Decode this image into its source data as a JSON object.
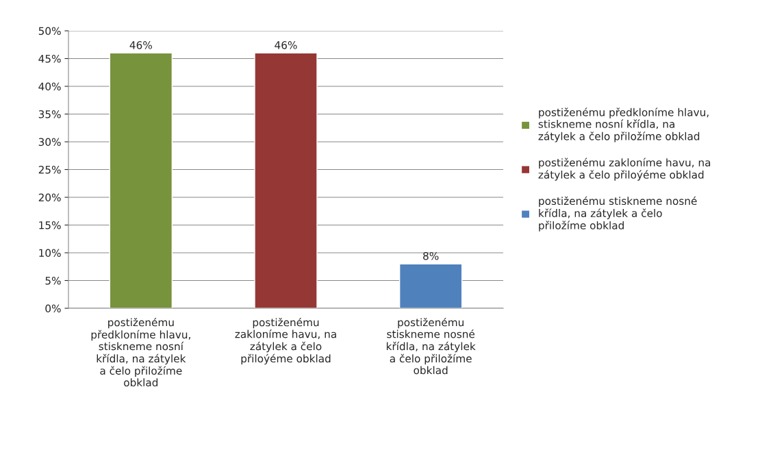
{
  "chart_data": {
    "type": "bar",
    "categories": [
      "postiženému předkloníme hlavu, stiskneme nosní křídla, na zátylek a čelo přiložíme obklad",
      "postiženému zakloníme havu, na zátylek a čelo přiloýéme obklad",
      "postiženému stiskneme nosné křídla, na zátylek a čelo přiložíme obklad"
    ],
    "series": [
      {
        "name": "postiženému předkloníme hlavu, stiskneme nosní křídla, na zátylek a čelo přiložíme obklad",
        "color": "#77933c",
        "values": [
          46,
          null,
          null
        ],
        "value_labels": [
          "46%",
          null,
          null
        ]
      },
      {
        "name": "postiženému zakloníme havu, na zátylek a čelo přiloýéme obklad",
        "color": "#953735",
        "values": [
          null,
          46,
          null
        ],
        "value_labels": [
          null,
          "46%",
          null
        ]
      },
      {
        "name": "postiženému stiskneme nosné křídla, na zátylek a čelo přiložíme obklad",
        "color": "#4f81bd",
        "values": [
          null,
          null,
          8
        ],
        "value_labels": [
          null,
          null,
          "8%"
        ]
      }
    ],
    "ylim": [
      0,
      50
    ],
    "yticks": [
      {
        "value": 0,
        "label": "0%"
      },
      {
        "value": 5,
        "label": "5%"
      },
      {
        "value": 10,
        "label": "10%"
      },
      {
        "value": 15,
        "label": "15%"
      },
      {
        "value": 20,
        "label": "20%"
      },
      {
        "value": 25,
        "label": "25%"
      },
      {
        "value": 30,
        "label": "30%"
      },
      {
        "value": 35,
        "label": "35%"
      },
      {
        "value": 40,
        "label": "40%"
      },
      {
        "value": 45,
        "label": "45%"
      },
      {
        "value": 50,
        "label": "50%"
      }
    ],
    "grid": "y",
    "legend": "right"
  }
}
